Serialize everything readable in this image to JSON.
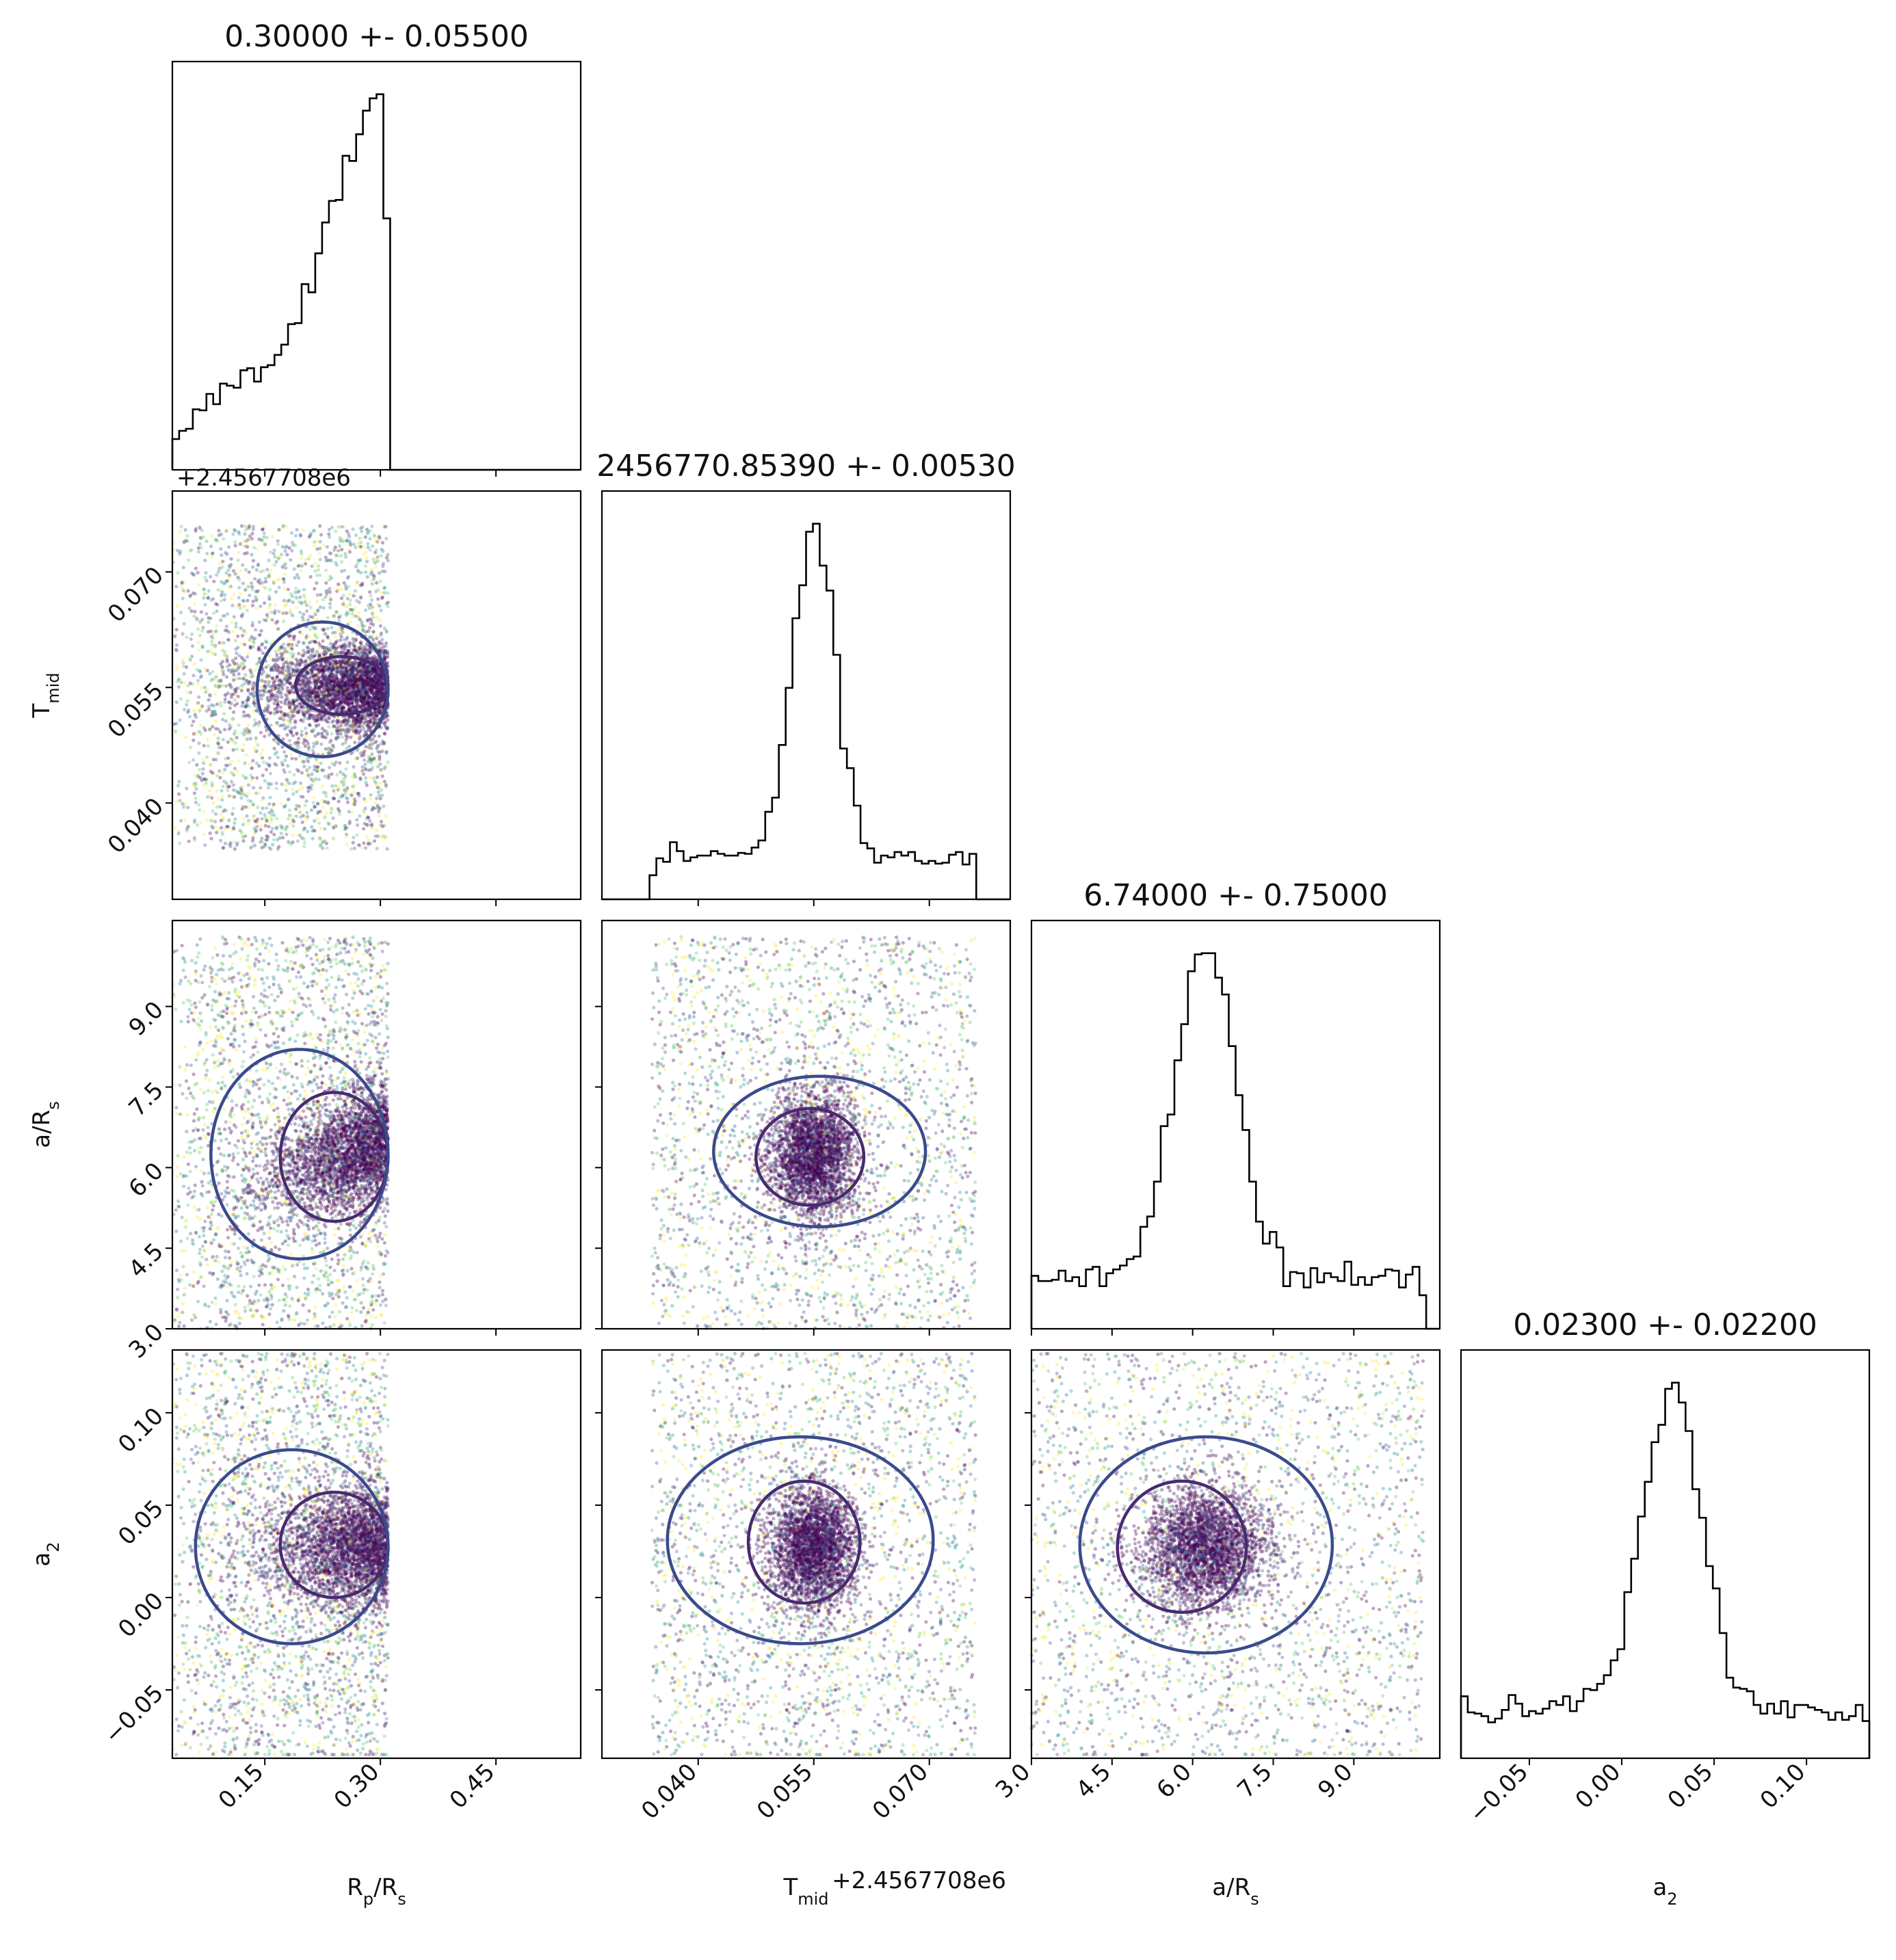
{
  "colors": {
    "scatter_palette": [
      "#440154",
      "#3b528b",
      "#21918c",
      "#5ec962",
      "#fde725"
    ],
    "contour_outer": "#3b4a8c",
    "contour_inner": "#472a6e",
    "histogram": "#000000"
  },
  "chart_data": {
    "type": "corner",
    "params": [
      {
        "key": "rp",
        "label": "R$_p$/R$_s$",
        "label_main": "R",
        "label_sub1": "p",
        "label_mid": "/R",
        "label_sub2": "s",
        "title": "0.30000 +- 0.05500",
        "range": [
          0.03,
          0.56
        ],
        "ticks": [
          0.15,
          0.3,
          0.45
        ],
        "tick_labels": [
          "0.15",
          "0.30",
          "0.45"
        ],
        "offset": ""
      },
      {
        "key": "tmid",
        "label": "T$_{mid}$",
        "label_main": "T",
        "label_sub1": "mid",
        "label_mid": "",
        "label_sub2": "",
        "title": "2456770.85390 +- 0.00530",
        "range": [
          0.0275,
          0.0805
        ],
        "ticks": [
          0.04,
          0.055,
          0.07
        ],
        "tick_labels": [
          "0.040",
          "0.055",
          "0.070"
        ],
        "offset": "+2.4567708e6"
      },
      {
        "key": "a_rs",
        "label": "a/R$_s$",
        "label_main": "a/R",
        "label_sub1": "s",
        "label_mid": "",
        "label_sub2": "",
        "title": "6.74000 +- 0.75000",
        "range": [
          3.0,
          10.6
        ],
        "ticks": [
          3.0,
          4.5,
          6.0,
          7.5,
          9.0
        ],
        "tick_labels": [
          "3.0",
          "4.5",
          "6.0",
          "7.5",
          "9.0"
        ],
        "offset": ""
      },
      {
        "key": "a2",
        "label": "a$_2$",
        "label_main": "a",
        "label_sub1": "2",
        "label_mid": "",
        "label_sub2": "",
        "title": "0.02300 +- 0.02200",
        "range": [
          -0.087,
          0.134
        ],
        "ticks": [
          -0.05,
          0.0,
          0.05,
          0.1
        ],
        "tick_labels": [
          "−0.05",
          "0.00",
          "0.05",
          "0.10"
        ],
        "offset": ""
      }
    ],
    "marginals": [
      {
        "param": "rp",
        "type": "histogram",
        "bin_edges_range": [
          0.03,
          0.31
        ],
        "peak": 0.3,
        "note_shape": "rising_sharp_cutoff"
      },
      {
        "param": "tmid",
        "type": "histogram",
        "peak": 0.055,
        "sigma_core": 0.0025,
        "support": [
          0.034,
          0.076
        ]
      },
      {
        "param": "a_rs",
        "type": "histogram",
        "peak": 6.4,
        "sigma_core": 0.35,
        "support": [
          3.0,
          10.3
        ]
      },
      {
        "param": "a2",
        "type": "histogram",
        "peak": 0.024,
        "sigma_core": 0.008,
        "support": [
          -0.087,
          0.134
        ]
      }
    ],
    "joint": [
      {
        "x": "rp",
        "y": "tmid",
        "center": [
          0.25,
          0.055
        ],
        "contours": [
          {
            "level": "inner",
            "x": [
              0.19,
              0.31
            ],
            "y": [
              0.0515,
              0.059
            ]
          },
          {
            "level": "outer",
            "x": [
              0.14,
              0.31
            ],
            "y": [
              0.046,
              0.0635
            ]
          }
        ]
      },
      {
        "x": "rp",
        "y": "a_rs",
        "center": [
          0.22,
          6.0
        ],
        "contours": [
          {
            "level": "inner",
            "x": [
              0.17,
              0.31
            ],
            "y": [
              5.0,
              7.4
            ]
          },
          {
            "level": "outer",
            "x": [
              0.08,
              0.31
            ],
            "y": [
              4.3,
              8.2
            ]
          }
        ]
      },
      {
        "x": "rp",
        "y": "a2",
        "center": [
          0.25,
          0.027
        ],
        "contours": [
          {
            "level": "inner",
            "x": [
              0.17,
              0.31
            ],
            "y": [
              0.0,
              0.057
            ]
          },
          {
            "level": "outer",
            "x": [
              0.06,
              0.31
            ],
            "y": [
              -0.025,
              0.08
            ]
          }
        ]
      },
      {
        "x": "tmid",
        "y": "a_rs",
        "center": [
          0.0545,
          6.2
        ],
        "contours": [
          {
            "level": "inner",
            "x": [
              0.0475,
              0.0615
            ],
            "y": [
              5.3,
              7.1
            ]
          },
          {
            "level": "outer",
            "x": [
              0.042,
              0.0695
            ],
            "y": [
              4.9,
              7.7
            ]
          }
        ]
      },
      {
        "x": "tmid",
        "y": "a2",
        "center": [
          0.0545,
          0.027
        ],
        "contours": [
          {
            "level": "inner",
            "x": [
              0.0465,
              0.061
            ],
            "y": [
              -0.003,
              0.063
            ]
          },
          {
            "level": "outer",
            "x": [
              0.036,
              0.0705
            ],
            "y": [
              -0.025,
              0.087
            ]
          }
        ]
      },
      {
        "x": "a_rs",
        "y": "a2",
        "center": [
          6.0,
          0.027
        ],
        "contours": [
          {
            "level": "inner",
            "x": [
              4.6,
              7.0
            ],
            "y": [
              -0.008,
              0.063
            ]
          },
          {
            "level": "outer",
            "x": [
              3.9,
              8.6
            ],
            "y": [
              -0.03,
              0.087
            ]
          }
        ]
      }
    ],
    "grid": false,
    "legend": "none"
  }
}
